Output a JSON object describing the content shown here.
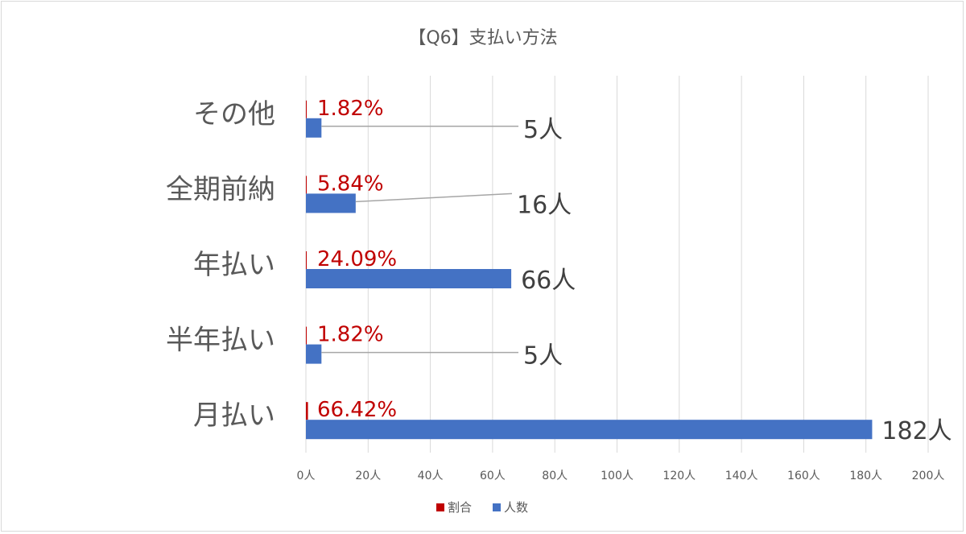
{
  "chart_data": {
    "type": "bar",
    "orientation": "horizontal",
    "title": "【Q6】支払い方法",
    "categories": [
      "その他",
      "全期前納",
      "年払い",
      "半年払い",
      "月払い"
    ],
    "series": [
      {
        "name": "割合",
        "color": "#c00000",
        "values": [
          0.0182,
          0.0584,
          0.2409,
          0.0182,
          0.6642
        ],
        "labels": [
          "1.82%",
          "5.84%",
          "24.09%",
          "1.82%",
          "66.42%"
        ]
      },
      {
        "name": "人数",
        "color": "#4472c4",
        "values": [
          5,
          16,
          66,
          5,
          182
        ],
        "labels": [
          "5人",
          "16人",
          "66人",
          "5人",
          "182人"
        ]
      }
    ],
    "xlim": [
      0,
      200
    ],
    "x_ticks": [
      "0人",
      "20人",
      "40人",
      "60人",
      "80人",
      "100人",
      "120人",
      "140人",
      "160人",
      "180人",
      "200人"
    ],
    "grid": true,
    "legend_position": "bottom"
  }
}
